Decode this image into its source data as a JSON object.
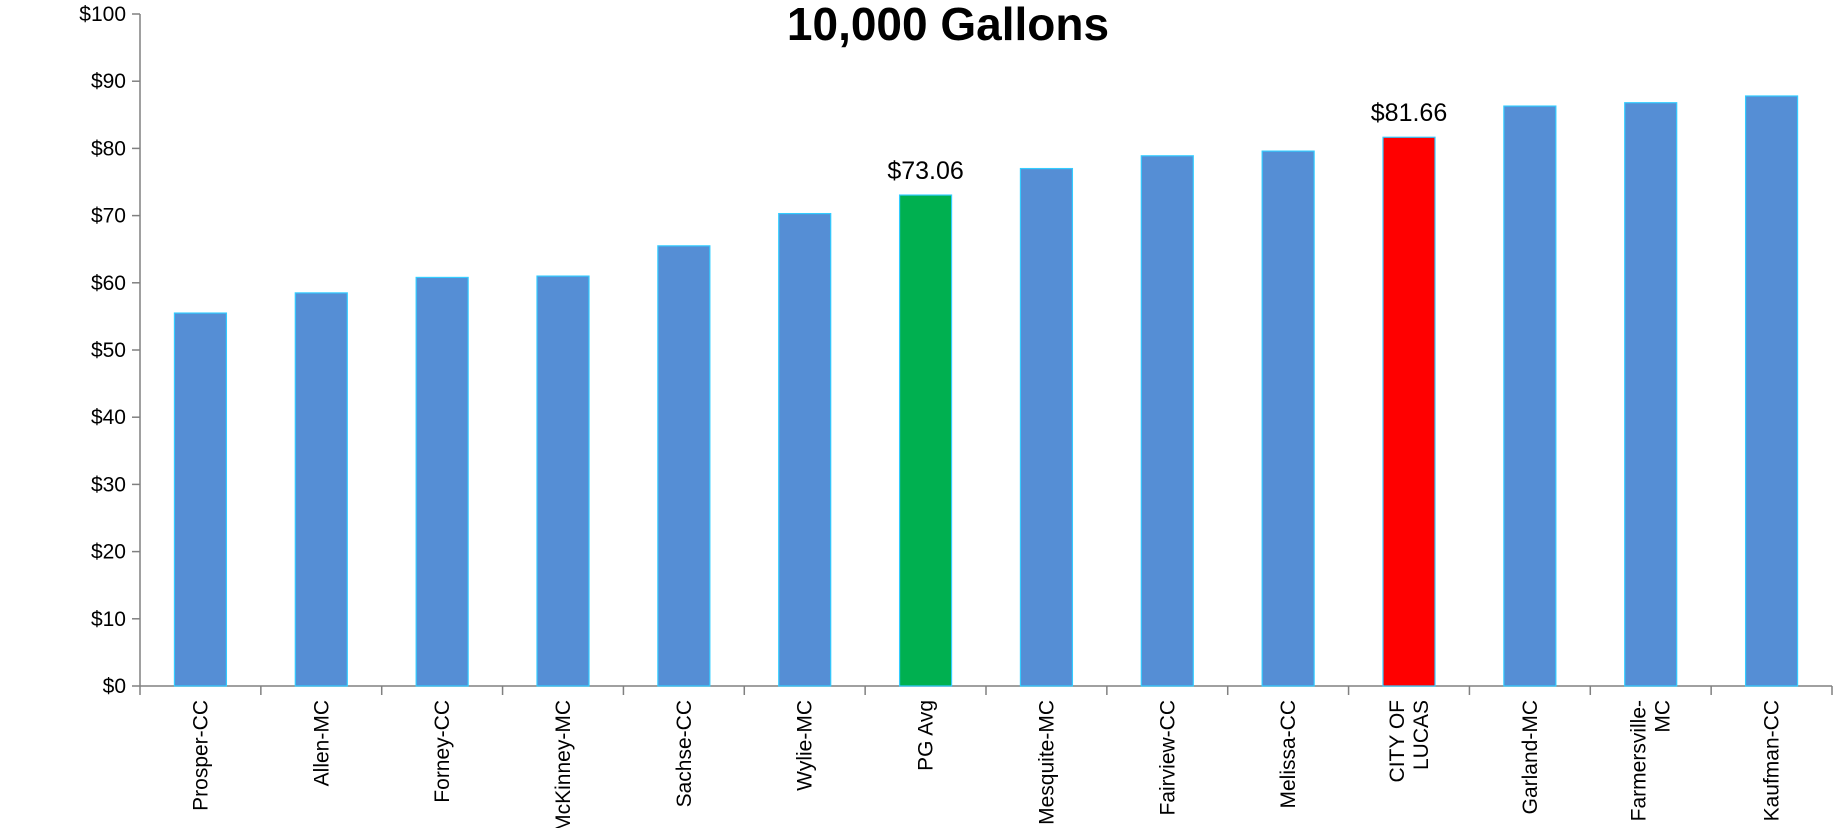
{
  "chart_data": {
    "type": "bar",
    "title": "10,000 Gallons",
    "xlabel": "",
    "ylabel": "",
    "ylim": [
      0,
      100
    ],
    "y_ticks": [
      0,
      10,
      20,
      30,
      40,
      50,
      60,
      70,
      80,
      90,
      100
    ],
    "y_tick_labels": [
      "$0",
      "$10",
      "$20",
      "$30",
      "$40",
      "$50",
      "$60",
      "$70",
      "$80",
      "$90",
      "$100"
    ],
    "grid": false,
    "legend": "none",
    "categories": [
      [
        "Prosper-CC"
      ],
      [
        "Allen-MC"
      ],
      [
        "Forney-CC"
      ],
      [
        "McKinney-MC"
      ],
      [
        "Sachse-CC"
      ],
      [
        "Wylie-MC"
      ],
      [
        "PG Avg"
      ],
      [
        "Mesquite-MC"
      ],
      [
        "Fairview-CC"
      ],
      [
        "Melissa-CC"
      ],
      [
        "CITY OF",
        "LUCAS"
      ],
      [
        "Garland-MC"
      ],
      [
        "Farmersville-",
        "MC"
      ],
      [
        "Kaufman-CC"
      ]
    ],
    "values": [
      55.5,
      58.5,
      60.8,
      61.0,
      65.5,
      70.3,
      73.06,
      77.0,
      78.9,
      79.6,
      81.66,
      86.3,
      86.8,
      87.8
    ],
    "bar_colors": [
      "#558ed5",
      "#558ed5",
      "#558ed5",
      "#558ed5",
      "#558ed5",
      "#558ed5",
      "#00b050",
      "#558ed5",
      "#558ed5",
      "#558ed5",
      "#ff0000",
      "#558ed5",
      "#558ed5",
      "#558ed5"
    ],
    "bar_outline_color": "#33ccff",
    "data_labels": [
      {
        "index": 6,
        "text": "$73.06"
      },
      {
        "index": 10,
        "text": "$81.66"
      }
    ]
  }
}
